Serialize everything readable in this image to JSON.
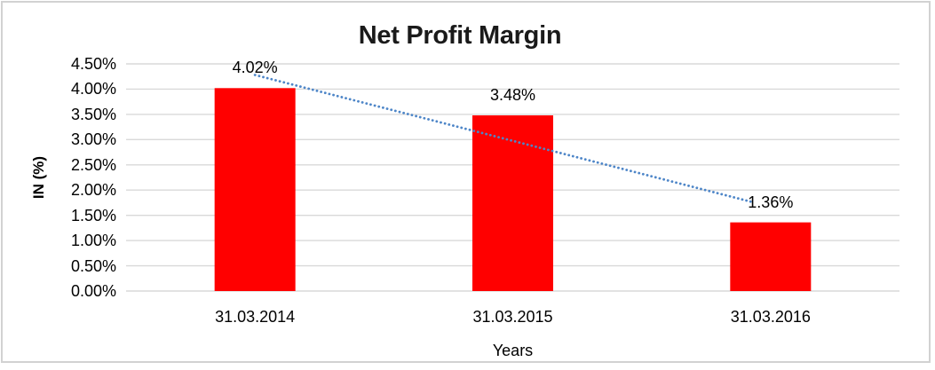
{
  "chart_data": {
    "type": "bar",
    "title": "Net Profit Margin",
    "categories": [
      "31.03.2014",
      "31.03.2015",
      "31.03.2016"
    ],
    "values": [
      4.02,
      3.48,
      1.36
    ],
    "data_labels": [
      "4.02%",
      "3.48%",
      "1.36%"
    ],
    "xlabel": "Years",
    "ylabel": "IN (%)",
    "ylim": [
      0,
      4.5
    ],
    "ytick_step": 0.5,
    "ytick_labels": [
      "0.00%",
      "0.50%",
      "1.00%",
      "1.50%",
      "2.00%",
      "2.50%",
      "3.00%",
      "3.50%",
      "4.00%",
      "4.50%"
    ],
    "grid": true,
    "legend": "none",
    "bar_color": "#ff0000",
    "gridline_color": "#d9d9d9",
    "frame_color": "#d2d2d2",
    "trendline": {
      "type": "linear",
      "style": "dotted",
      "color": "#4e86c8",
      "start_value": 4.28,
      "end_value": 1.67
    }
  }
}
